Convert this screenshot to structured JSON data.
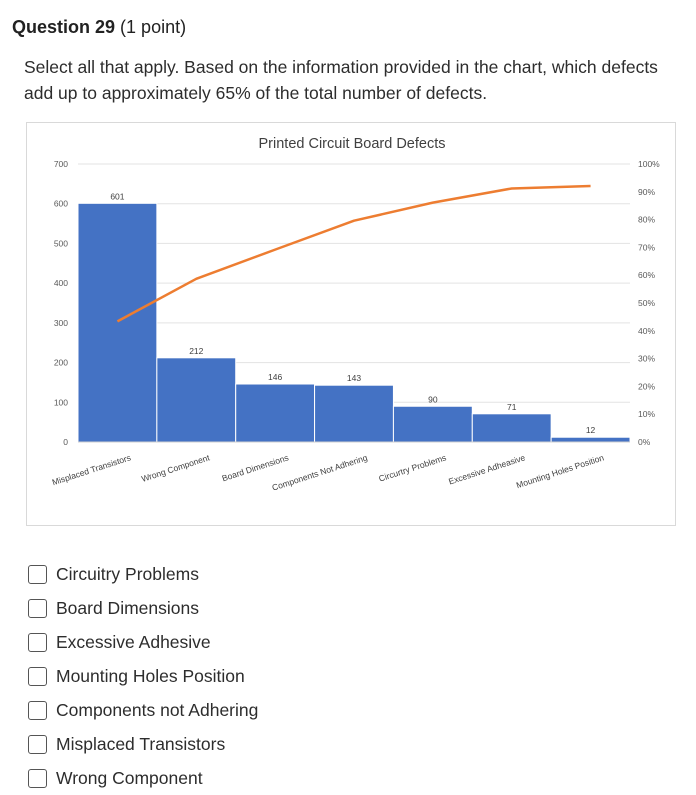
{
  "question": {
    "title": "Question 29",
    "points": "(1 point)",
    "text": "Select all that apply.    Based on the information provided in the chart,  which defects add up to approximately 65% of the total number of defects."
  },
  "chart_data": {
    "type": "bar",
    "title": "Printed Circuit Board Defects",
    "categories": [
      "Misplaced Transistors",
      "Wrong Component",
      "Board Dimensions",
      "Components Not Adhering",
      "Circurtry Problems",
      "Excessive Adheasive",
      "Mounting Holes Position"
    ],
    "series": [
      {
        "type": "bar",
        "values": [
          601,
          212,
          146,
          143,
          90,
          71,
          12
        ],
        "color": "#4472C4"
      },
      {
        "type": "line",
        "values": [
          43.4,
          58.7,
          69.2,
          79.6,
          86.1,
          91.2,
          92.1
        ],
        "color": "#ED7D31"
      }
    ],
    "data_labels": [
      "601",
      "212",
      "146",
      "143",
      "90",
      "71",
      "12"
    ],
    "ylim": [
      0,
      700
    ],
    "yticks": [
      "0",
      "100",
      "200",
      "300",
      "400",
      "500",
      "600",
      "700"
    ],
    "y2lim": [
      0,
      100
    ],
    "y2ticks": [
      "0%",
      "10%",
      "20%",
      "30%",
      "40%",
      "50%",
      "60%",
      "70%",
      "80%",
      "90%",
      "100%"
    ],
    "grid": true,
    "legend": "none"
  },
  "options": [
    {
      "label": "Circuitry Problems"
    },
    {
      "label": "Board Dimensions"
    },
    {
      "label": "Excessive Adhesive"
    },
    {
      "label": "Mounting Holes Position"
    },
    {
      "label": "Components not Adhering"
    },
    {
      "label": "Misplaced Transistors"
    },
    {
      "label": "Wrong Component"
    }
  ]
}
